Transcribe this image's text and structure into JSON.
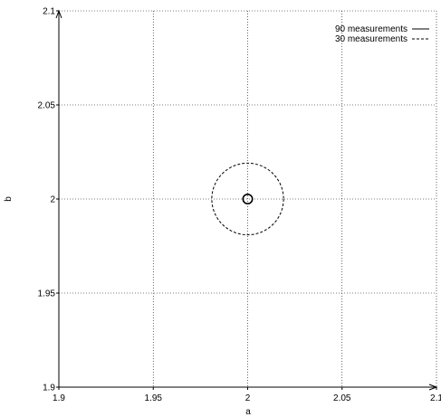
{
  "chart_data": {
    "type": "line",
    "xlabel": "a",
    "ylabel": "b",
    "xlim": [
      1.9,
      2.1
    ],
    "ylim": [
      1.9,
      2.1
    ],
    "x_ticks": [
      1.9,
      1.95,
      2,
      2.05,
      2.1
    ],
    "y_ticks": [
      1.9,
      1.95,
      2,
      2.05,
      2.1
    ],
    "x_tick_labels": [
      "1.9",
      "1.95",
      "2",
      "2.05",
      "2.1"
    ],
    "y_tick_labels": [
      "1.9",
      "1.95",
      "2",
      "2.05",
      "2.1"
    ],
    "grid": true,
    "legend_position": "top-right",
    "series": [
      {
        "name": "90 measurements",
        "style": "solid",
        "center": [
          2.0,
          2.0
        ],
        "radius": 0.0025
      },
      {
        "name": "30 measurements",
        "style": "dashed",
        "center": [
          2.0,
          2.0
        ],
        "radius": 0.019
      }
    ]
  }
}
